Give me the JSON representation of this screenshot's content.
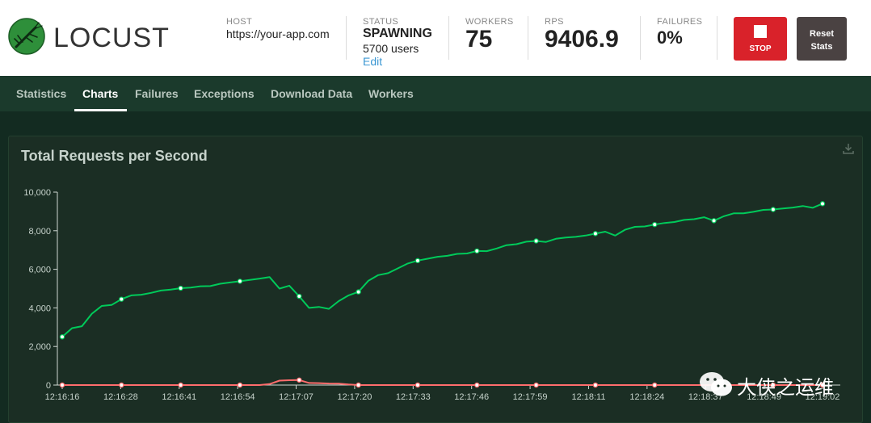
{
  "app": {
    "logo_text": "LOCUST"
  },
  "stats": {
    "host": {
      "label": "HOST",
      "value": "https://your-app.com"
    },
    "status": {
      "label": "STATUS",
      "value": "SPAWNING",
      "users": "5700 users",
      "edit": "Edit"
    },
    "workers": {
      "label": "WORKERS",
      "value": "75"
    },
    "rps": {
      "label": "RPS",
      "value": "9406.9"
    },
    "failures": {
      "label": "FAILURES",
      "value": "0%"
    }
  },
  "buttons": {
    "stop": "STOP",
    "reset": "Reset\nStats"
  },
  "nav": {
    "tabs": [
      {
        "label": "Statistics",
        "active": false
      },
      {
        "label": "Charts",
        "active": true
      },
      {
        "label": "Failures",
        "active": false
      },
      {
        "label": "Exceptions",
        "active": false
      },
      {
        "label": "Download Data",
        "active": false
      },
      {
        "label": "Workers",
        "active": false
      }
    ]
  },
  "watermark": {
    "text": "大侠之运维"
  },
  "chart_data": {
    "type": "line",
    "title": "Total Requests per Second",
    "ylim": [
      0,
      10000
    ],
    "yticks": [
      0,
      2000,
      4000,
      6000,
      8000,
      10000
    ],
    "ytick_labels": [
      "0",
      "2,000",
      "4,000",
      "6,000",
      "8,000",
      "10,000"
    ],
    "xtick_labels": [
      "12:16:16",
      "12:16:28",
      "12:16:41",
      "12:16:54",
      "12:17:07",
      "12:17:20",
      "12:17:33",
      "12:17:46",
      "12:17:59",
      "12:18:11",
      "12:18:24",
      "12:18:37",
      "12:18:49",
      "12:19:02"
    ],
    "grid": false,
    "colors": {
      "rps": "#00ca5a",
      "failures": "#ff6d6d"
    },
    "series": [
      {
        "values": [
          2500,
          2950,
          3050,
          3700,
          4100,
          4150,
          4450,
          4650,
          4680,
          4780,
          4900,
          4950,
          5020,
          5050,
          5120,
          5130,
          5250,
          5320,
          5380,
          5450,
          5520,
          5600,
          5000,
          5150,
          4600,
          4000,
          4050,
          3950,
          4350,
          4650,
          4830,
          5400,
          5700,
          5800,
          6050,
          6300,
          6450,
          6550,
          6650,
          6700,
          6800,
          6820,
          6950,
          6940,
          7080,
          7250,
          7300,
          7430,
          7470,
          7420,
          7580,
          7650,
          7680,
          7750,
          7850,
          7950,
          7750,
          8050,
          8200,
          8220,
          8320,
          8400,
          8450,
          8560,
          8600,
          8700,
          8520,
          8750,
          8900,
          8900,
          8980,
          9080,
          9100,
          9150,
          9200,
          9280,
          9190,
          9400
        ],
        "markers": [
          0,
          6,
          12,
          18,
          24,
          30,
          36,
          42,
          48,
          54,
          60,
          66,
          72,
          77
        ]
      },
      {
        "values": [
          0,
          0,
          0,
          0,
          0,
          0,
          0,
          0,
          0,
          0,
          0,
          0,
          0,
          0,
          0,
          0,
          0,
          0,
          0,
          0,
          0,
          50,
          230,
          250,
          260,
          110,
          100,
          80,
          70,
          30,
          0,
          0,
          0,
          0,
          0,
          0,
          0,
          0,
          0,
          0,
          0,
          0,
          0,
          0,
          0,
          0,
          0,
          0,
          0,
          0,
          0,
          0,
          0,
          0,
          0,
          0,
          0,
          0,
          0,
          0,
          0,
          0,
          0,
          0,
          0,
          0,
          0,
          0,
          0,
          0,
          0,
          0,
          0,
          0,
          0,
          0,
          0,
          0
        ],
        "markers": [
          0,
          6,
          12,
          18,
          24,
          30,
          36,
          42,
          48,
          54,
          60,
          66,
          72,
          77
        ]
      }
    ]
  }
}
